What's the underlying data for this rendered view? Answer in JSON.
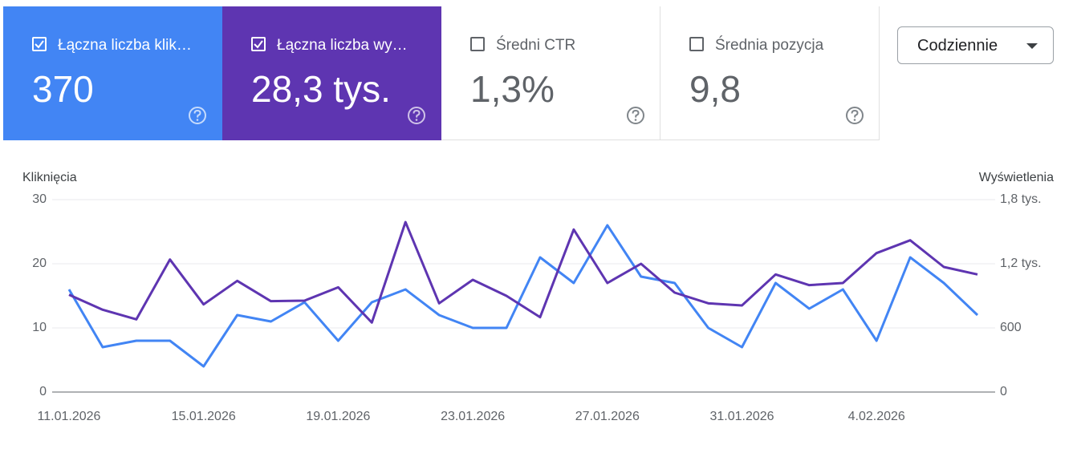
{
  "cards": [
    {
      "label": "Łączna liczba klik…",
      "value": "370",
      "checked": true,
      "color": "#4285f4"
    },
    {
      "label": "Łączna liczba wy…",
      "value": "28,3 tys.",
      "checked": true,
      "color": "#5e35b1"
    },
    {
      "label": "Średni CTR",
      "value": "1,3%",
      "checked": false,
      "color": "#ffffff"
    },
    {
      "label": "Średnia pozycja",
      "value": "9,8",
      "checked": false,
      "color": "#ffffff"
    }
  ],
  "dropdown": {
    "label": "Codziennie"
  },
  "chart_data": {
    "type": "line",
    "y_label": "Kliknięcia",
    "y2_label": "Wyświetlenia",
    "categories": [
      "11.01.2026",
      null,
      null,
      null,
      "15.01.2026",
      null,
      null,
      null,
      "19.01.2026",
      null,
      null,
      null,
      "23.01.2026",
      null,
      null,
      null,
      "27.01.2026",
      null,
      null,
      null,
      "31.01.2026",
      null,
      null,
      null,
      "4.02.2026",
      null,
      null,
      null
    ],
    "ylim": [
      0,
      30
    ],
    "yticks": [
      0,
      10,
      20,
      30
    ],
    "y2lim": [
      0,
      1800
    ],
    "y2ticks": [
      0,
      600,
      {
        "value": 1200,
        "label": "1,2 tys."
      },
      {
        "value": 1800,
        "label": "1,8 tys."
      }
    ],
    "grid": true,
    "series": [
      {
        "name": "Kliknięcia",
        "color": "#4285f4",
        "values": [
          16,
          7,
          8,
          8,
          4,
          12,
          11,
          14,
          8,
          14,
          16,
          12,
          10,
          10,
          21,
          17,
          26,
          18,
          17,
          10,
          7,
          17,
          13,
          16,
          8,
          21,
          17,
          12
        ]
      },
      {
        "name": "Wyświetlenia",
        "color": "#5e35b1",
        "axis": "y2",
        "values": [
          910,
          770,
          680,
          1240,
          820,
          1040,
          850,
          855,
          980,
          650,
          1590,
          830,
          1050,
          900,
          700,
          1520,
          1020,
          1200,
          930,
          830,
          810,
          1100,
          1000,
          1020,
          1300,
          1420,
          1170,
          1100
        ]
      }
    ]
  }
}
